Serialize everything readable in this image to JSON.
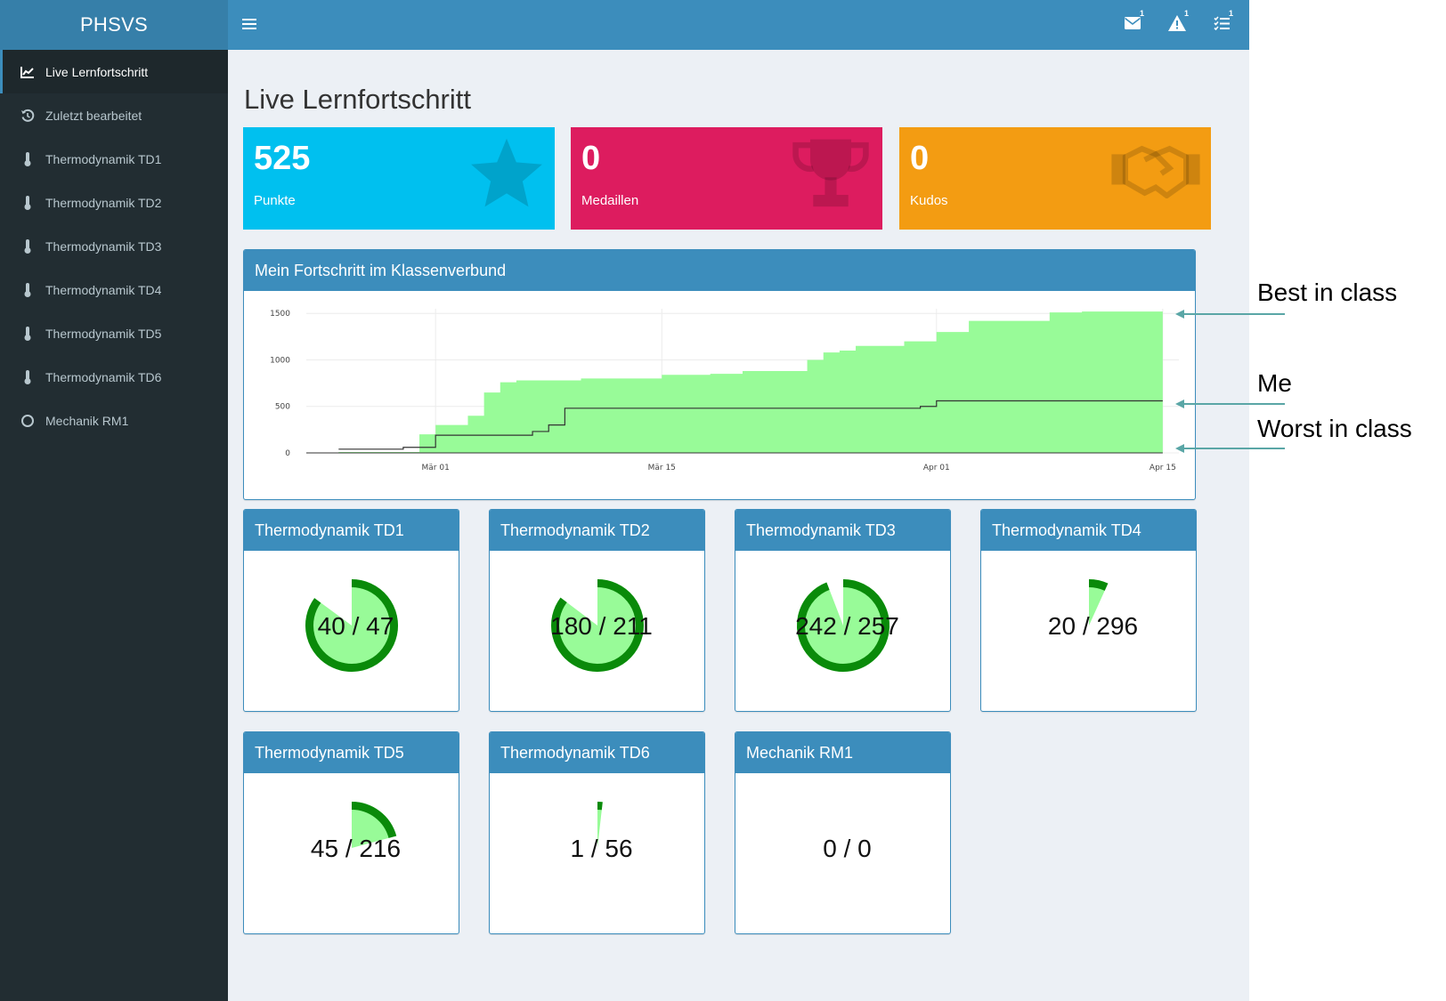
{
  "app": {
    "title": "PHSVS"
  },
  "sidebar": {
    "items": [
      {
        "label": "Live Lernfortschritt",
        "icon": "area-chart-icon",
        "active": true
      },
      {
        "label": "Zuletzt bearbeitet",
        "icon": "history-icon"
      },
      {
        "label": "Thermodynamik TD1",
        "icon": "thermometer-icon"
      },
      {
        "label": "Thermodynamik TD2",
        "icon": "thermometer-icon"
      },
      {
        "label": "Thermodynamik TD3",
        "icon": "thermometer-icon"
      },
      {
        "label": "Thermodynamik TD4",
        "icon": "thermometer-icon"
      },
      {
        "label": "Thermodynamik TD5",
        "icon": "thermometer-icon"
      },
      {
        "label": "Thermodynamik TD6",
        "icon": "thermometer-icon"
      },
      {
        "label": "Mechanik RM1",
        "icon": "circle-outline-icon"
      }
    ]
  },
  "header": {
    "notifications": [
      {
        "icon": "envelope-icon",
        "count": "1"
      },
      {
        "icon": "warning-icon",
        "count": "1"
      },
      {
        "icon": "tasks-icon",
        "count": "1"
      }
    ]
  },
  "page": {
    "title": "Live Lernfortschritt"
  },
  "stats": [
    {
      "value": "525",
      "label": "Punkte",
      "color": "#00c0ef",
      "icon": "star-icon"
    },
    {
      "value": "0",
      "label": "Medaillen",
      "color": "#dd1c5f",
      "icon": "trophy-icon"
    },
    {
      "value": "0",
      "label": "Kudos",
      "color": "#f39c12",
      "icon": "handshake-icon"
    }
  ],
  "progress_panel": {
    "title": "Mein Fortschritt im Klassenverbund"
  },
  "chart_data": {
    "type": "area",
    "x_tick_labels": [
      "Mär 01",
      "Mär 15",
      "Apr 01",
      "Apr 15"
    ],
    "x_ticks": [
      "2020-03-01",
      "2020-03-15",
      "2020-04-01",
      "2020-04-15"
    ],
    "y_ticks": [
      0,
      500,
      1000,
      1500
    ],
    "ylim": [
      0,
      1550
    ],
    "xlim": [
      "2020-02-22",
      "2020-04-16"
    ],
    "grid": true,
    "colors": {
      "area": "#98fb98",
      "line": "#333333"
    },
    "best": {
      "x": [
        "2020-02-24",
        "2020-02-29",
        "2020-03-01",
        "2020-03-03",
        "2020-03-04",
        "2020-03-05",
        "2020-03-06",
        "2020-03-10",
        "2020-03-15",
        "2020-03-18",
        "2020-03-20",
        "2020-03-22",
        "2020-03-24",
        "2020-03-25",
        "2020-03-26",
        "2020-03-27",
        "2020-03-30",
        "2020-04-01",
        "2020-04-03",
        "2020-04-08",
        "2020-04-10",
        "2020-04-15"
      ],
      "y": [
        10,
        200,
        300,
        400,
        650,
        760,
        780,
        800,
        840,
        850,
        880,
        880,
        1000,
        1080,
        1100,
        1150,
        1200,
        1300,
        1420,
        1510,
        1520,
        1530
      ]
    },
    "me": {
      "x": [
        "2020-02-24",
        "2020-02-28",
        "2020-03-01",
        "2020-03-07",
        "2020-03-08",
        "2020-03-09",
        "2020-03-20",
        "2020-03-31",
        "2020-04-01",
        "2020-04-15"
      ],
      "y": [
        40,
        60,
        190,
        230,
        300,
        480,
        480,
        500,
        560,
        560
      ]
    },
    "worst": {
      "x": [
        "2020-02-22",
        "2020-04-15"
      ],
      "y": [
        0,
        0
      ]
    }
  },
  "modules": [
    {
      "title": "Thermodynamik TD1",
      "done": 40,
      "total": 47,
      "label": "40 / 47"
    },
    {
      "title": "Thermodynamik TD2",
      "done": 180,
      "total": 211,
      "label": "180 / 211"
    },
    {
      "title": "Thermodynamik TD3",
      "done": 242,
      "total": 257,
      "label": "242 / 257"
    },
    {
      "title": "Thermodynamik TD4",
      "done": 20,
      "total": 296,
      "label": "20 / 296"
    },
    {
      "title": "Thermodynamik TD5",
      "done": 45,
      "total": 216,
      "label": "45 / 216"
    },
    {
      "title": "Thermodynamik TD6",
      "done": 1,
      "total": 56,
      "label": "1 / 56"
    },
    {
      "title": "Mechanik RM1",
      "done": 0,
      "total": 0,
      "label": "0 / 0"
    }
  ],
  "annotations": {
    "best": "Best in class",
    "me": "Me",
    "worst": "Worst in class"
  }
}
